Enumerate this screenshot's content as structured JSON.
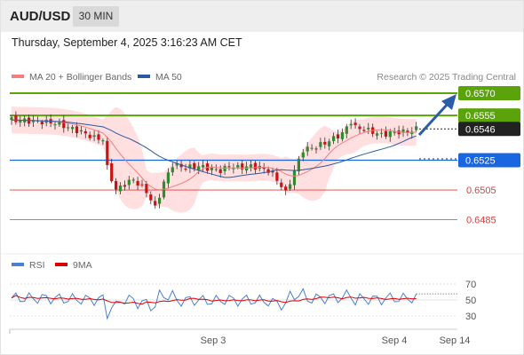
{
  "header": {
    "symbol": "AUD/USD",
    "timeframe": "30 MIN",
    "datetime": "Thursday, September 4, 2025 3:16:23 AM CET"
  },
  "legend": {
    "ma20": "MA 20 + Bollinger Bands",
    "ma50": "MA 50",
    "credit": "Research © 2025 Trading Central",
    "ma20_color": "#f08080",
    "ma50_color": "#2c5aa0"
  },
  "price_levels": [
    {
      "label": "0.6570",
      "value": 0.657,
      "kind": "resistance"
    },
    {
      "label": "0.6555",
      "value": 0.6555,
      "kind": "resistance"
    },
    {
      "label": "0.6546",
      "value": 0.6546,
      "kind": "current"
    },
    {
      "label": "0.6525",
      "value": 0.6525,
      "kind": "pivot"
    },
    {
      "label": "0.6505",
      "value": 0.6505,
      "kind": "support"
    },
    {
      "label": "0.6485",
      "value": 0.6485,
      "kind": "support"
    }
  ],
  "rsi": {
    "legend_rsi": "RSI",
    "legend_9ma": "9MA",
    "ticks": [
      "70",
      "50",
      "30"
    ],
    "rsi_color": "#4a7fd4",
    "ma_color": "#dd0000"
  },
  "x_axis": {
    "ticks": [
      "Sep 3",
      "Sep 4",
      "Sep 14"
    ]
  },
  "colors": {
    "resistance": "#5ba30a",
    "support": "#e23b3b",
    "pivot": "#1a66e0",
    "current": "#222222",
    "bull_candle": "#2e8b2e",
    "bear_candle": "#cc1111",
    "band_fill": "#ffd7d7",
    "forecast_arrow": "#2a5ca8"
  }
}
